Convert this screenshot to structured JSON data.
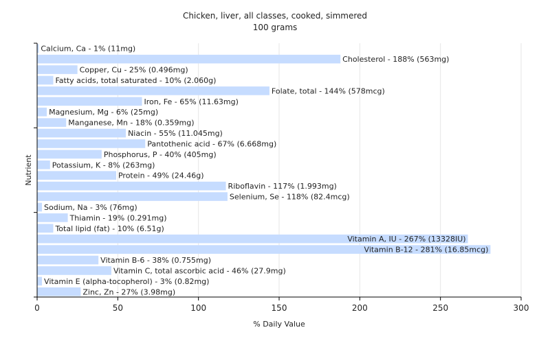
{
  "chart_data": {
    "type": "bar",
    "orientation": "horizontal",
    "title": "Chicken, liver, all classes, cooked, simmered",
    "subtitle": "100 grams",
    "xlabel": "% Daily Value",
    "ylabel": "Nutrient",
    "xlim": [
      0,
      300
    ],
    "xticks": [
      "0",
      "50",
      "100",
      "150",
      "200",
      "250",
      "300"
    ],
    "grid": true,
    "bar_color": "#c6dcff",
    "categories": [
      "Calcium, Ca",
      "Cholesterol",
      "Copper, Cu",
      "Fatty acids, total saturated",
      "Folate, total",
      "Iron, Fe",
      "Magnesium, Mg",
      "Manganese, Mn",
      "Niacin",
      "Pantothenic acid",
      "Phosphorus, P",
      "Potassium, K",
      "Protein",
      "Riboflavin",
      "Selenium, Se",
      "Sodium, Na",
      "Thiamin",
      "Total lipid (fat)",
      "Vitamin A, IU",
      "Vitamin B-12",
      "Vitamin B-6",
      "Vitamin C, total ascorbic acid",
      "Vitamin E (alpha-tocopherol)",
      "Zinc, Zn"
    ],
    "values": [
      1,
      188,
      25,
      10,
      144,
      65,
      6,
      18,
      55,
      67,
      40,
      8,
      49,
      117,
      118,
      3,
      19,
      10,
      267,
      281,
      38,
      46,
      3,
      27
    ],
    "labels": [
      "Calcium, Ca - 1% (11mg)",
      "Cholesterol - 188% (563mg)",
      "Copper, Cu - 25% (0.496mg)",
      "Fatty acids, total saturated - 10% (2.060g)",
      "Folate, total - 144% (578mcg)",
      "Iron, Fe - 65% (11.63mg)",
      "Magnesium, Mg - 6% (25mg)",
      "Manganese, Mn - 18% (0.359mg)",
      "Niacin - 55% (11.045mg)",
      "Pantothenic acid - 67% (6.668mg)",
      "Phosphorus, P - 40% (405mg)",
      "Potassium, K - 8% (263mg)",
      "Protein - 49% (24.46g)",
      "Riboflavin - 117% (1.993mg)",
      "Selenium, Se - 118% (82.4mcg)",
      "Sodium, Na - 3% (76mg)",
      "Thiamin - 19% (0.291mg)",
      "Total lipid (fat) - 10% (6.51g)",
      "Vitamin A, IU - 267% (13328IU)",
      "Vitamin B-12 - 281% (16.85mcg)",
      "Vitamin B-6 - 38% (0.755mg)",
      "Vitamin C, total ascorbic acid - 46% (27.9mg)",
      "Vitamin E (alpha-tocopherol) - 3% (0.82mg)",
      "Zinc, Zn - 27% (3.98mg)"
    ]
  }
}
